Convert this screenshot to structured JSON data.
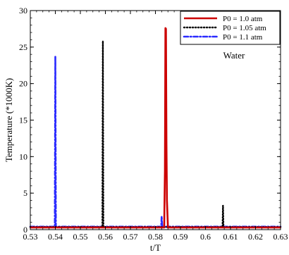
{
  "chart_data": {
    "type": "line",
    "xlabel": "t/T",
    "ylabel": "Temperature (*1000K)",
    "xlim": [
      0.53,
      0.63
    ],
    "ylim": [
      0,
      30
    ],
    "xticks": [
      0.53,
      0.54,
      0.55,
      0.56,
      0.57,
      0.58,
      0.59,
      0.6,
      0.61,
      0.62,
      0.63
    ],
    "xtick_labels": [
      "0.53",
      "0.54",
      "0.55",
      "0.56",
      "0.57",
      "0.58",
      "0.59",
      "0.6",
      "0.61",
      "0.62",
      "0.63"
    ],
    "yticks": [
      0,
      5,
      10,
      15,
      20,
      25,
      30
    ],
    "ytick_labels": [
      "0",
      "5",
      "10",
      "15",
      "20",
      "25",
      "30"
    ],
    "annotation": "Water",
    "grid": false,
    "legend_position": "top-right",
    "series": [
      {
        "name": "P0 = 1.0 atm",
        "color": "#cc0000",
        "style": "solid",
        "points": [
          [
            0.53,
            0.3
          ],
          [
            0.5835,
            0.3
          ],
          [
            0.5838,
            8
          ],
          [
            0.584,
            27.6
          ],
          [
            0.5842,
            27.5
          ],
          [
            0.5844,
            12
          ],
          [
            0.5846,
            4
          ],
          [
            0.585,
            0.3
          ],
          [
            0.63,
            0.3
          ]
        ]
      },
      {
        "name": "P0 = 1.05 atm",
        "color": "#000000",
        "style": "dotted",
        "points": [
          [
            0.53,
            0.35
          ],
          [
            0.5588,
            0.35
          ],
          [
            0.559,
            25.8
          ],
          [
            0.5592,
            0.35
          ],
          [
            0.6068,
            0.35
          ],
          [
            0.607,
            3.3
          ],
          [
            0.6072,
            0.35
          ],
          [
            0.63,
            0.35
          ]
        ]
      },
      {
        "name": "P0 = 1.1 atm",
        "color": "#2a2aff",
        "style": "dashdot",
        "points": [
          [
            0.53,
            0.4
          ],
          [
            0.5398,
            0.4
          ],
          [
            0.54,
            23.7
          ],
          [
            0.5402,
            0.4
          ],
          [
            0.5823,
            0.4
          ],
          [
            0.5825,
            1.8
          ],
          [
            0.5827,
            0.4
          ],
          [
            0.63,
            0.4
          ]
        ]
      }
    ]
  }
}
